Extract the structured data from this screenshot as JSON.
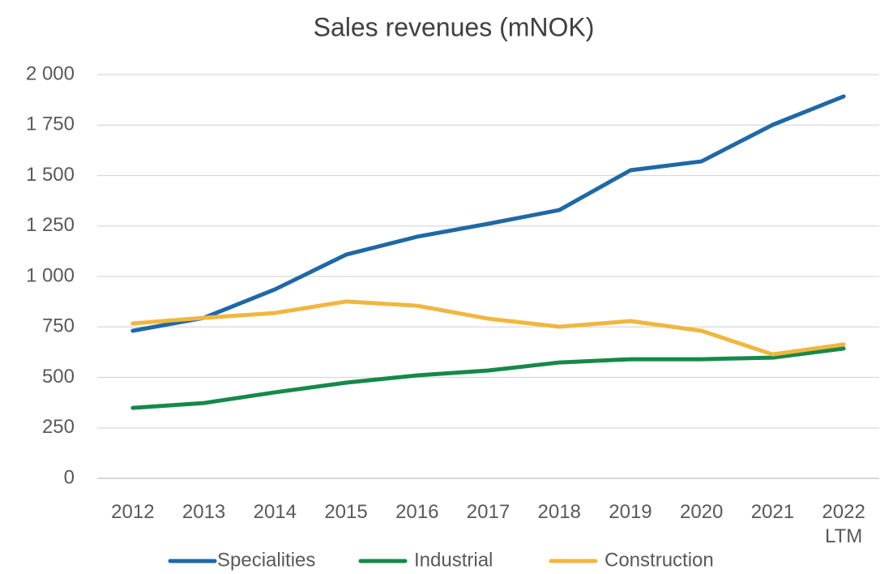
{
  "chart_data": {
    "type": "line",
    "title": "Sales revenues (mNOK)",
    "categories": [
      "2012",
      "2013",
      "2014",
      "2015",
      "2016",
      "2017",
      "2018",
      "2019",
      "2020",
      "2021",
      "2022 LTM"
    ],
    "series": [
      {
        "name": "Specialities",
        "color": "#1f68a6",
        "values": [
          731,
          795,
          936,
          1108,
          1197,
          1261,
          1329,
          1526,
          1570,
          1751,
          1892
        ]
      },
      {
        "name": "Industrial",
        "color": "#15894a",
        "values": [
          349,
          373,
          426,
          474,
          510,
          534,
          574,
          590,
          590,
          598,
          643
        ]
      },
      {
        "name": "Construction",
        "color": "#f0b73e",
        "values": [
          767,
          795,
          819,
          876,
          855,
          791,
          751,
          779,
          731,
          614,
          663
        ]
      }
    ],
    "ylim": [
      0,
      2000
    ],
    "yticks": [
      0,
      250,
      500,
      750,
      {
        "value": 1000,
        "label": "1 000"
      },
      {
        "value": 1250,
        "label": "1 250"
      },
      {
        "value": 1500,
        "label": "1 500"
      },
      {
        "value": 1750,
        "label": "1 750"
      },
      {
        "value": 2000,
        "label": "2 000"
      }
    ],
    "grid": true,
    "legend": "bottom"
  }
}
